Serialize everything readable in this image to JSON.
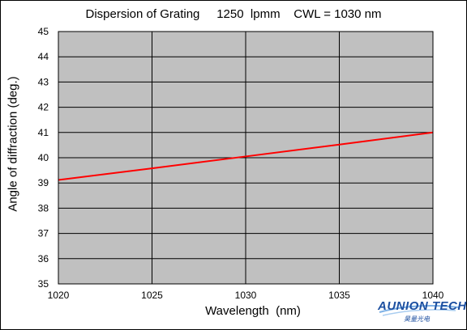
{
  "chart_data": {
    "type": "line",
    "title": "Dispersion of Grating     1250  lpmm    CWL = 1030 nm",
    "xlabel": "Wavelength  (nm)",
    "ylabel": "Angle of diffraction (deg.)",
    "xlim": [
      1020,
      1040
    ],
    "ylim": [
      35,
      45
    ],
    "xticks": [
      1020,
      1025,
      1030,
      1035,
      1040
    ],
    "yticks": [
      35,
      36,
      37,
      38,
      39,
      40,
      41,
      42,
      43,
      44,
      45
    ],
    "grid": true,
    "legend": "none",
    "plot_background": "#c0c0c0",
    "series": [
      {
        "color": "#ff0000",
        "x": [
          1020,
          1025,
          1030,
          1035,
          1040
        ],
        "y": [
          39.12,
          39.58,
          40.05,
          40.52,
          41.0
        ]
      }
    ]
  },
  "logo": {
    "text": "AUNION TECH",
    "subtext": "昊量光电"
  }
}
